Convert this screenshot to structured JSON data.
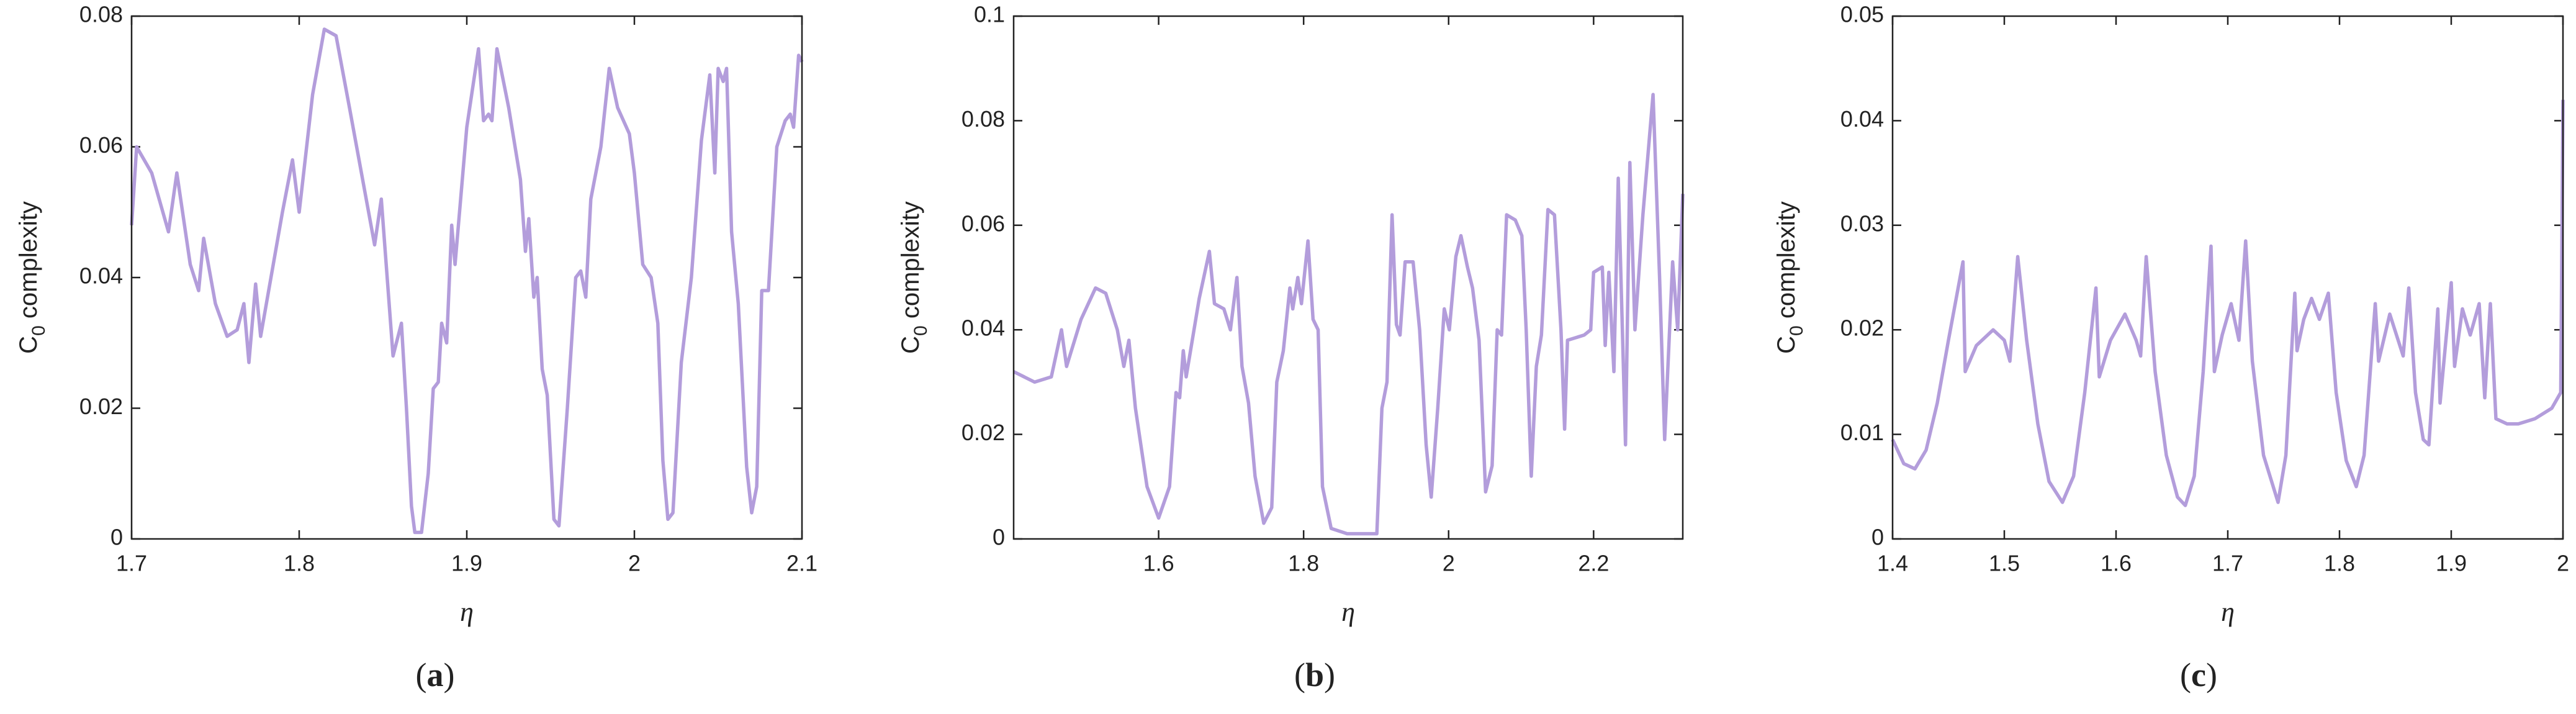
{
  "chart_data": [
    {
      "type": "line",
      "xlabel": "η",
      "ylabel": [
        "C",
        "0",
        " complexity"
      ],
      "panel_label": [
        "(",
        "a",
        ")"
      ],
      "xlim": [
        1.7,
        2.1
      ],
      "ylim": [
        0,
        0.08
      ],
      "xticks": [
        1.7,
        1.8,
        1.9,
        2,
        2.1
      ],
      "yticks": [
        0,
        0.02,
        0.04,
        0.06,
        0.08
      ],
      "series": [
        {
          "color": "#b39ddb",
          "x": [
            1.7,
            1.703,
            1.712,
            1.722,
            1.727,
            1.735,
            1.74,
            1.743,
            1.75,
            1.757,
            1.763,
            1.767,
            1.77,
            1.774,
            1.777,
            1.79,
            1.796,
            1.8,
            1.808,
            1.815,
            1.822,
            1.83,
            1.84,
            1.845,
            1.849,
            1.856,
            1.861,
            1.864,
            1.867,
            1.869,
            1.873,
            1.877,
            1.88,
            1.883,
            1.885,
            1.888,
            1.891,
            1.893,
            1.9,
            1.907,
            1.91,
            1.913,
            1.915,
            1.918,
            1.925,
            1.932,
            1.935,
            1.937,
            1.94,
            1.942,
            1.945,
            1.948,
            1.952,
            1.955,
            1.96,
            1.965,
            1.968,
            1.971,
            1.974,
            1.98,
            1.985,
            1.99,
            1.997,
            2.0,
            2.005,
            2.01,
            2.014,
            2.017,
            2.02,
            2.023,
            2.028,
            2.034,
            2.04,
            2.045,
            2.048,
            2.05,
            2.053,
            2.055,
            2.058,
            2.062,
            2.067,
            2.07,
            2.073,
            2.076,
            2.08,
            2.085,
            2.09,
            2.093,
            2.095,
            2.098,
            2.1
          ],
          "values": [
            0.048,
            0.06,
            0.056,
            0.047,
            0.056,
            0.042,
            0.038,
            0.046,
            0.036,
            0.031,
            0.032,
            0.036,
            0.027,
            0.039,
            0.031,
            0.05,
            0.058,
            0.05,
            0.068,
            0.078,
            0.077,
            0.066,
            0.052,
            0.045,
            0.052,
            0.028,
            0.033,
            0.02,
            0.005,
            0.001,
            0.001,
            0.01,
            0.023,
            0.024,
            0.033,
            0.03,
            0.048,
            0.042,
            0.063,
            0.075,
            0.064,
            0.065,
            0.064,
            0.075,
            0.066,
            0.055,
            0.044,
            0.049,
            0.037,
            0.04,
            0.026,
            0.022,
            0.003,
            0.002,
            0.02,
            0.04,
            0.041,
            0.037,
            0.052,
            0.06,
            0.072,
            0.066,
            0.062,
            0.056,
            0.042,
            0.04,
            0.033,
            0.012,
            0.003,
            0.004,
            0.027,
            0.04,
            0.061,
            0.071,
            0.056,
            0.072,
            0.07,
            0.072,
            0.047,
            0.036,
            0.011,
            0.004,
            0.008,
            0.038,
            0.038,
            0.06,
            0.064,
            0.065,
            0.063,
            0.074,
            0.073
          ]
        }
      ]
    },
    {
      "type": "line",
      "xlabel": "η",
      "ylabel": [
        "C",
        "0",
        " complexity"
      ],
      "panel_label": [
        "(",
        "b",
        ")"
      ],
      "xlim": [
        1.4,
        2.323
      ],
      "ylim": [
        0,
        0.1
      ],
      "xticks": [
        1.6,
        1.8,
        2,
        2.2
      ],
      "yticks": [
        0,
        0.02,
        0.04,
        0.06,
        0.08,
        0.1
      ],
      "series": [
        {
          "color": "#b39ddb",
          "x": [
            1.4,
            1.429,
            1.452,
            1.466,
            1.473,
            1.493,
            1.513,
            1.527,
            1.543,
            1.552,
            1.559,
            1.568,
            1.584,
            1.6,
            1.615,
            1.624,
            1.629,
            1.634,
            1.638,
            1.656,
            1.67,
            1.677,
            1.69,
            1.699,
            1.708,
            1.715,
            1.724,
            1.733,
            1.745,
            1.756,
            1.763,
            1.772,
            1.781,
            1.785,
            1.792,
            1.797,
            1.806,
            1.813,
            1.82,
            1.826,
            1.838,
            1.86,
            1.901,
            1.908,
            1.915,
            1.922,
            1.928,
            1.933,
            1.94,
            1.951,
            1.96,
            1.969,
            1.976,
            1.985,
            1.994,
            2.001,
            2.01,
            2.017,
            2.026,
            2.033,
            2.042,
            2.051,
            2.06,
            2.067,
            2.073,
            2.08,
            2.092,
            2.101,
            2.107,
            2.114,
            2.121,
            2.128,
            2.137,
            2.146,
            2.155,
            2.16,
            2.164,
            2.187,
            2.196,
            2.2,
            2.212,
            2.216,
            2.221,
            2.228,
            2.234,
            2.244,
            2.25,
            2.257,
            2.268,
            2.282,
            2.291,
            2.298,
            2.309,
            2.316,
            2.323
          ],
          "values": [
            0.032,
            0.03,
            0.031,
            0.04,
            0.033,
            0.042,
            0.048,
            0.047,
            0.04,
            0.033,
            0.038,
            0.025,
            0.01,
            0.004,
            0.01,
            0.028,
            0.027,
            0.036,
            0.031,
            0.046,
            0.055,
            0.045,
            0.044,
            0.04,
            0.05,
            0.033,
            0.026,
            0.012,
            0.003,
            0.006,
            0.03,
            0.036,
            0.048,
            0.044,
            0.05,
            0.045,
            0.057,
            0.042,
            0.04,
            0.01,
            0.002,
            0.001,
            0.001,
            0.025,
            0.03,
            0.062,
            0.041,
            0.039,
            0.053,
            0.053,
            0.04,
            0.018,
            0.008,
            0.025,
            0.044,
            0.04,
            0.054,
            0.058,
            0.052,
            0.048,
            0.038,
            0.009,
            0.014,
            0.04,
            0.039,
            0.062,
            0.061,
            0.058,
            0.04,
            0.012,
            0.033,
            0.039,
            0.063,
            0.062,
            0.04,
            0.021,
            0.038,
            0.039,
            0.04,
            0.051,
            0.052,
            0.037,
            0.051,
            0.032,
            0.069,
            0.018,
            0.072,
            0.04,
            0.062,
            0.085,
            0.05,
            0.019,
            0.053,
            0.04,
            0.066
          ]
        }
      ]
    },
    {
      "type": "line",
      "xlabel": "η",
      "ylabel": [
        "C",
        "0",
        " complexity"
      ],
      "panel_label": [
        "(",
        "c",
        ")"
      ],
      "xlim": [
        1.4,
        2
      ],
      "ylim": [
        0,
        0.05
      ],
      "xticks": [
        1.4,
        1.5,
        1.6,
        1.7,
        1.8,
        1.9,
        2
      ],
      "yticks": [
        0,
        0.01,
        0.02,
        0.03,
        0.04,
        0.05
      ],
      "series": [
        {
          "color": "#b39ddb",
          "x": [
            1.4,
            1.41,
            1.42,
            1.43,
            1.44,
            1.45,
            1.463,
            1.465,
            1.475,
            1.49,
            1.5,
            1.505,
            1.512,
            1.52,
            1.53,
            1.54,
            1.552,
            1.562,
            1.572,
            1.582,
            1.585,
            1.595,
            1.608,
            1.618,
            1.622,
            1.627,
            1.635,
            1.645,
            1.655,
            1.662,
            1.67,
            1.678,
            1.685,
            1.688,
            1.695,
            1.703,
            1.71,
            1.716,
            1.722,
            1.732,
            1.745,
            1.752,
            1.76,
            1.762,
            1.768,
            1.775,
            1.782,
            1.79,
            1.797,
            1.806,
            1.815,
            1.822,
            1.832,
            1.835,
            1.845,
            1.857,
            1.862,
            1.868,
            1.875,
            1.88,
            1.888,
            1.89,
            1.9,
            1.903,
            1.91,
            1.917,
            1.925,
            1.93,
            1.935,
            1.94,
            1.95,
            1.96,
            1.975,
            1.99,
            1.998,
            2.0
          ],
          "values": [
            0.0095,
            0.0072,
            0.0067,
            0.0085,
            0.013,
            0.019,
            0.0265,
            0.016,
            0.0185,
            0.02,
            0.019,
            0.017,
            0.027,
            0.019,
            0.011,
            0.0055,
            0.0035,
            0.006,
            0.014,
            0.024,
            0.0155,
            0.019,
            0.0215,
            0.019,
            0.0175,
            0.027,
            0.016,
            0.008,
            0.004,
            0.0032,
            0.006,
            0.016,
            0.028,
            0.016,
            0.0195,
            0.0225,
            0.019,
            0.0285,
            0.017,
            0.008,
            0.0035,
            0.008,
            0.0235,
            0.018,
            0.021,
            0.023,
            0.021,
            0.0235,
            0.014,
            0.0075,
            0.005,
            0.008,
            0.0225,
            0.017,
            0.0215,
            0.0175,
            0.024,
            0.014,
            0.0095,
            0.009,
            0.022,
            0.013,
            0.0245,
            0.0165,
            0.022,
            0.0195,
            0.0225,
            0.0135,
            0.0225,
            0.0115,
            0.011,
            0.011,
            0.0115,
            0.0125,
            0.014,
            0.042
          ]
        }
      ]
    }
  ]
}
